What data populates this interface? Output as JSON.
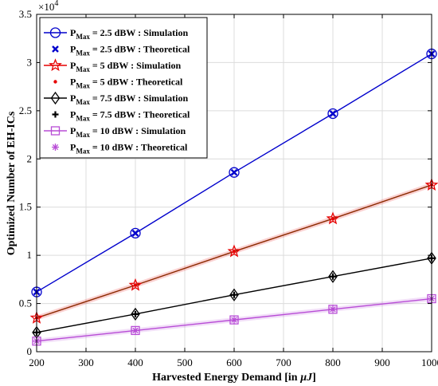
{
  "chart_data": {
    "type": "line",
    "xlabel_prefix": "Harvested Energy Demand [in ",
    "xlabel_unit": "µJ",
    "xlabel_suffix": "]",
    "ylabel": "Optimized Number of EH-ICs",
    "y_multiplier_base": "×10",
    "y_multiplier_exp": "4",
    "x": [
      200,
      400,
      600,
      800,
      1000
    ],
    "xlim": [
      200,
      1000
    ],
    "ylim": [
      0,
      3.5
    ],
    "x_ticks": [
      "200",
      "300",
      "400",
      "500",
      "600",
      "700",
      "800",
      "900",
      "1000"
    ],
    "y_ticks": [
      "0",
      "0.5",
      "1",
      "1.5",
      "2",
      "2.5",
      "3",
      "3.5"
    ],
    "grid": true,
    "legend_position": "top-left",
    "series": [
      {
        "name_prefix": "P",
        "name_sub": "Max",
        "name_suffix": " = 2.5 dBW : Simulation",
        "kind": "simulation",
        "marker": "circle",
        "color": "#0000cc",
        "values": [
          0.62,
          1.23,
          1.86,
          2.47,
          3.09
        ]
      },
      {
        "name_prefix": "P",
        "name_sub": "Max",
        "name_suffix": " = 2.5 dBW : Theoretical",
        "kind": "theoretical",
        "marker": "x",
        "color": "#0000cc",
        "values": [
          0.62,
          1.23,
          1.86,
          2.47,
          3.09
        ]
      },
      {
        "name_prefix": "P",
        "name_sub": "Max",
        "name_suffix": " = 5 dBW : Simulation",
        "kind": "simulation",
        "marker": "star",
        "color": "#e60000",
        "values": [
          0.35,
          0.69,
          1.04,
          1.38,
          1.73
        ]
      },
      {
        "name_prefix": "P",
        "name_sub": "Max",
        "name_suffix": " = 5 dBW : Theoretical",
        "kind": "theoretical",
        "marker": "dot",
        "color": "#e60000",
        "values": [
          0.35,
          0.69,
          1.04,
          1.38,
          1.73
        ]
      },
      {
        "name_prefix": "P",
        "name_sub": "Max",
        "name_suffix": " = 7.5 dBW : Simulation",
        "kind": "simulation",
        "marker": "diamond",
        "color": "#000000",
        "values": [
          0.2,
          0.39,
          0.59,
          0.78,
          0.97
        ]
      },
      {
        "name_prefix": "P",
        "name_sub": "Max",
        "name_suffix": " = 7.5 dBW : Theoretical",
        "kind": "theoretical",
        "marker": "plus",
        "color": "#000000",
        "values": [
          0.2,
          0.39,
          0.59,
          0.78,
          0.97
        ]
      },
      {
        "name_prefix": "P",
        "name_sub": "Max",
        "name_suffix": " = 10 dBW : Simulation",
        "kind": "simulation",
        "marker": "square",
        "color": "#b84dd6",
        "values": [
          0.11,
          0.22,
          0.33,
          0.44,
          0.55
        ]
      },
      {
        "name_prefix": "P",
        "name_sub": "Max",
        "name_suffix": " = 10 dBW : Theoretical",
        "kind": "theoretical",
        "marker": "asterisk",
        "color": "#b84dd6",
        "values": [
          0.11,
          0.22,
          0.33,
          0.44,
          0.55
        ]
      }
    ]
  }
}
